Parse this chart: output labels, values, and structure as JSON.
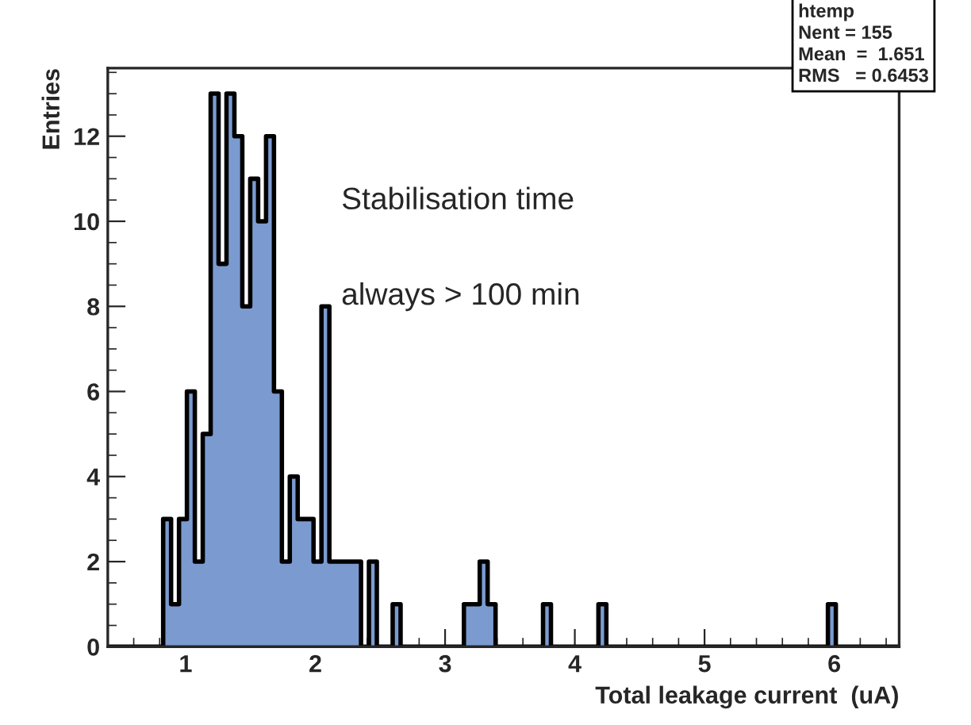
{
  "chart_data": {
    "type": "histogram",
    "xlabel": "Total leakage current  (uA)",
    "ylabel": "Entries",
    "bins": [
      0.4,
      0.461,
      0.522,
      0.583,
      0.644,
      0.705,
      0.766,
      0.827,
      0.888,
      0.949,
      1.01,
      1.071,
      1.132,
      1.193,
      1.254,
      1.315,
      1.376,
      1.437,
      1.498,
      1.559,
      1.62,
      1.681,
      1.742,
      1.803,
      1.864,
      1.925,
      1.986,
      2.047,
      2.108,
      2.169,
      2.23,
      2.291,
      2.352,
      2.413,
      2.474,
      2.535,
      2.596,
      2.657,
      2.718,
      2.779,
      2.84,
      2.901,
      2.962,
      3.023,
      3.084,
      3.145,
      3.206,
      3.267,
      3.328,
      3.389,
      3.45,
      3.511,
      3.572,
      3.633,
      3.694,
      3.755,
      3.816,
      3.877,
      3.938,
      3.999,
      4.06,
      4.121,
      4.182,
      4.243,
      4.304,
      4.365,
      4.426,
      4.487,
      4.548,
      4.609,
      4.67,
      4.731,
      4.792,
      4.853,
      4.914,
      4.975,
      5.036,
      5.097,
      5.158,
      5.219,
      5.28,
      5.341,
      5.402,
      5.463,
      5.524,
      5.585,
      5.646,
      5.707,
      5.768,
      5.829,
      5.89,
      5.951,
      6.012,
      6.073,
      6.134,
      6.195,
      6.256,
      6.317,
      6.378,
      6.439,
      6.5
    ],
    "values": [
      0,
      0,
      0,
      0,
      0,
      0,
      0,
      3,
      1,
      3,
      6,
      2,
      5,
      13,
      9,
      13,
      12,
      8,
      11,
      10,
      12,
      6,
      2,
      4,
      3,
      3,
      2,
      8,
      2,
      2,
      2,
      2,
      0,
      2,
      0,
      0,
      1,
      0,
      0,
      0,
      0,
      0,
      0,
      0,
      0,
      1,
      1,
      2,
      1,
      0,
      0,
      0,
      0,
      0,
      0,
      1,
      0,
      0,
      0,
      0,
      0,
      0,
      1,
      0,
      0,
      0,
      0,
      0,
      0,
      0,
      0,
      0,
      0,
      0,
      0,
      0,
      0,
      0,
      0,
      0,
      0,
      0,
      0,
      0,
      0,
      0,
      0,
      0,
      0,
      0,
      0,
      1,
      0,
      0,
      0,
      0,
      0,
      0,
      0,
      0
    ],
    "color": "#7b9bd0",
    "xlim": [
      0.4,
      6.5
    ],
    "ylim": [
      0,
      13.6
    ],
    "xticks": [
      1,
      2,
      3,
      4,
      5,
      6
    ],
    "yticks": [
      0,
      2,
      4,
      6,
      8,
      10,
      12
    ],
    "annotations": [
      "htemp",
      "Nent = 155",
      "Mean  =  1.651",
      "RMS   = 0.6453",
      "Stabilisation time",
      "always > 100 min"
    ]
  }
}
